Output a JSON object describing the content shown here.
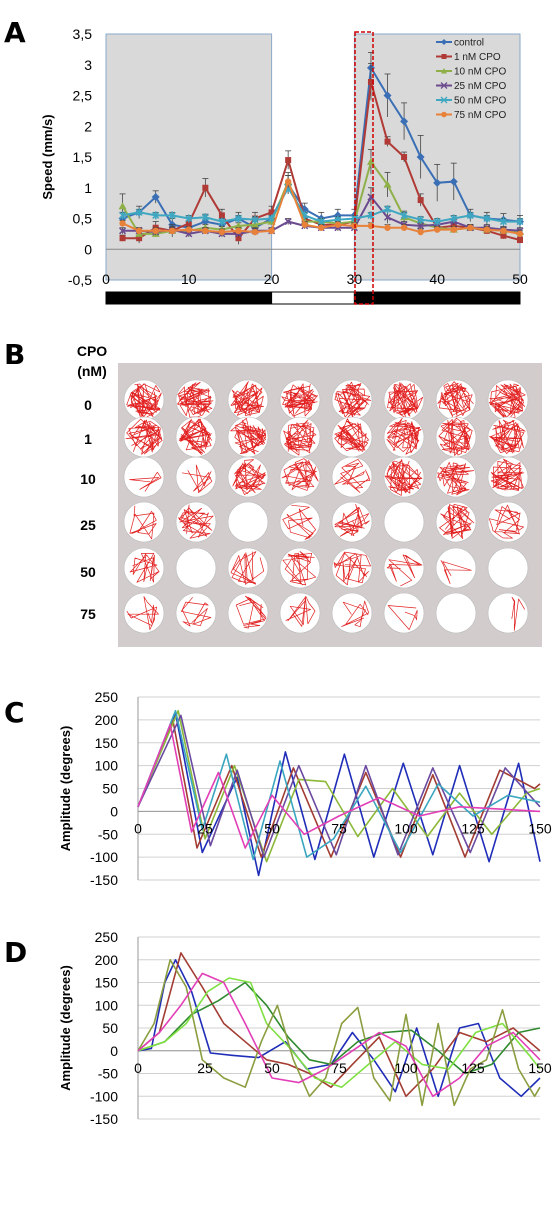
{
  "panels": {
    "a": {
      "letter": "A"
    },
    "b": {
      "letter": "B",
      "header_line1": "CPO",
      "header_line2": "(nM)",
      "rows": [
        "0",
        "1",
        "10",
        "25",
        "50",
        "75"
      ]
    },
    "c": {
      "letter": "C"
    },
    "d": {
      "letter": "D"
    }
  },
  "colors": {
    "shade": "#d9d9d9",
    "red_box": "#d00000",
    "plate_bg": "#d2cccc",
    "trace": "#e22020"
  },
  "chart_data": [
    {
      "id": "A",
      "type": "line",
      "ylabel": "Speed (mm/s)",
      "xlim": [
        0,
        50
      ],
      "ylim": [
        -0.5,
        3.5
      ],
      "xticks": [
        0,
        10,
        20,
        30,
        40,
        50
      ],
      "yticks": [
        "-0,5",
        "0",
        "0,5",
        "1",
        "1,5",
        "2",
        "2,5",
        "3",
        "3,5"
      ],
      "ytick_values": [
        -0.5,
        0,
        0.5,
        1,
        1.5,
        2,
        2.5,
        3,
        3.5
      ],
      "shaded_ranges": [
        [
          0,
          20
        ],
        [
          30,
          50
        ]
      ],
      "highlight_range": [
        30,
        32
      ],
      "light_bar": [
        [
          0,
          "dark"
        ],
        [
          20,
          "light"
        ],
        [
          30,
          "dark"
        ],
        [
          50,
          "end"
        ]
      ],
      "legend_position": "top-right",
      "x": [
        2,
        4,
        6,
        8,
        10,
        12,
        14,
        16,
        18,
        20,
        22,
        24,
        26,
        28,
        30,
        32,
        34,
        36,
        38,
        40,
        42,
        44,
        46,
        48,
        50
      ],
      "series": [
        {
          "name": "control",
          "color": "#3a6fb5",
          "marker": "diamond",
          "values": [
            0.5,
            0.6,
            0.85,
            0.4,
            0.35,
            0.45,
            0.4,
            0.5,
            0.35,
            0.5,
            1.05,
            0.65,
            0.5,
            0.55,
            0.55,
            2.95,
            2.5,
            2.08,
            1.5,
            1.08,
            1.1,
            0.55,
            0.5,
            0.48,
            0.45
          ],
          "errors": [
            0.1,
            0.1,
            0.1,
            0.1,
            0.1,
            0.1,
            0.1,
            0.1,
            0.1,
            0.1,
            0.15,
            0.1,
            0.1,
            0.1,
            0.1,
            0.25,
            0.35,
            0.3,
            0.35,
            0.3,
            0.3,
            0.1,
            0.1,
            0.1,
            0.1
          ]
        },
        {
          "name": "1 nM CPO",
          "color": "#b03a36",
          "marker": "square",
          "values": [
            0.18,
            0.18,
            0.35,
            0.3,
            0.42,
            1.0,
            0.55,
            0.18,
            0.5,
            0.6,
            1.45,
            0.5,
            0.4,
            0.4,
            0.45,
            2.72,
            1.75,
            1.5,
            0.8,
            0.35,
            0.38,
            0.35,
            0.3,
            0.22,
            0.15
          ],
          "errors": [
            0.05,
            0.08,
            0.1,
            0.1,
            0.1,
            0.15,
            0.1,
            0.1,
            0.1,
            0.1,
            0.15,
            0.1,
            0.1,
            0.1,
            0.1,
            0.3,
            0.08,
            0.08,
            0.1,
            0.05,
            0.05,
            0.05,
            0.05,
            0.05,
            0.05
          ]
        },
        {
          "name": "10 nM CPO",
          "color": "#8fb049",
          "marker": "triangle",
          "values": [
            0.7,
            0.25,
            0.25,
            0.3,
            0.3,
            0.35,
            0.32,
            0.38,
            0.4,
            0.45,
            1.1,
            0.45,
            0.45,
            0.42,
            0.45,
            1.42,
            1.05,
            0.52,
            0.42,
            0.35,
            0.32,
            0.35,
            0.32,
            0.3,
            0.28
          ],
          "errors": [
            0.2,
            0.05,
            0.05,
            0.05,
            0.05,
            0.05,
            0.05,
            0.05,
            0.05,
            0.05,
            0.15,
            0.05,
            0.05,
            0.05,
            0.05,
            0.2,
            0.2,
            0.1,
            0.05,
            0.05,
            0.05,
            0.05,
            0.05,
            0.05,
            0.05
          ]
        },
        {
          "name": "25 nM CPO",
          "color": "#6b4a8f",
          "marker": "x",
          "values": [
            0.3,
            0.3,
            0.28,
            0.32,
            0.25,
            0.3,
            0.25,
            0.25,
            0.3,
            0.3,
            0.45,
            0.38,
            0.35,
            0.35,
            0.35,
            0.85,
            0.52,
            0.4,
            0.38,
            0.4,
            0.45,
            0.35,
            0.35,
            0.32,
            0.3
          ],
          "errors": [
            0.05,
            0.05,
            0.05,
            0.05,
            0.05,
            0.05,
            0.05,
            0.05,
            0.05,
            0.05,
            0.05,
            0.05,
            0.05,
            0.05,
            0.05,
            0.15,
            0.1,
            0.05,
            0.05,
            0.05,
            0.05,
            0.05,
            0.05,
            0.05,
            0.05
          ]
        },
        {
          "name": "50 nM CPO",
          "color": "#3fa7c1",
          "marker": "asterisk",
          "values": [
            0.55,
            0.6,
            0.55,
            0.55,
            0.5,
            0.52,
            0.45,
            0.5,
            0.48,
            0.5,
            1.0,
            0.55,
            0.45,
            0.48,
            0.5,
            0.55,
            0.65,
            0.55,
            0.48,
            0.45,
            0.5,
            0.55,
            0.5,
            0.45,
            0.45
          ],
          "errors": [
            0.05,
            0.05,
            0.05,
            0.05,
            0.05,
            0.05,
            0.05,
            0.05,
            0.05,
            0.05,
            0.1,
            0.05,
            0.05,
            0.05,
            0.05,
            0.05,
            0.05,
            0.05,
            0.05,
            0.05,
            0.05,
            0.05,
            0.05,
            0.05,
            0.05
          ]
        },
        {
          "name": "75 nM CPO",
          "color": "#e8823a",
          "marker": "circle",
          "values": [
            0.42,
            0.3,
            0.3,
            0.3,
            0.32,
            0.3,
            0.28,
            0.3,
            0.28,
            0.3,
            1.1,
            0.4,
            0.35,
            0.4,
            0.38,
            0.38,
            0.35,
            0.35,
            0.28,
            0.32,
            0.32,
            0.35,
            0.32,
            0.3,
            0.25
          ],
          "errors": [
            0.05,
            0.05,
            0.05,
            0.05,
            0.05,
            0.05,
            0.05,
            0.05,
            0.05,
            0.05,
            0.1,
            0.05,
            0.05,
            0.05,
            0.05,
            0.05,
            0.05,
            0.05,
            0.05,
            0.05,
            0.05,
            0.05,
            0.05,
            0.05,
            0.05
          ]
        }
      ]
    },
    {
      "id": "C",
      "type": "line",
      "ylabel": "Amplitude (degrees)",
      "xlim": [
        0,
        150
      ],
      "ylim": [
        -150,
        250
      ],
      "xticks": [
        0,
        25,
        50,
        75,
        100,
        125,
        150
      ],
      "yticks": [
        -150,
        -100,
        -50,
        0,
        50,
        100,
        150,
        200,
        250
      ],
      "grid": true,
      "series": [
        {
          "color": "#1f2db8",
          "x": [
            0,
            14,
            24,
            37,
            45,
            55,
            66,
            77,
            88,
            99,
            110,
            120,
            131,
            142,
            150
          ],
          "values": [
            10,
            215,
            -90,
            75,
            -140,
            130,
            -105,
            125,
            -100,
            105,
            -95,
            100,
            -110,
            105,
            -110
          ]
        },
        {
          "color": "#a33d33",
          "x": [
            0,
            13,
            22,
            35,
            46,
            58,
            72,
            85,
            98,
            110,
            122,
            135,
            148,
            150
          ],
          "values": [
            10,
            200,
            -80,
            100,
            -100,
            95,
            -100,
            85,
            -100,
            80,
            -100,
            90,
            50,
            60
          ]
        },
        {
          "color": "#8cb83a",
          "x": [
            0,
            15,
            25,
            36,
            48,
            60,
            70,
            82,
            95,
            108,
            120,
            132,
            145,
            150
          ],
          "values": [
            10,
            220,
            -60,
            100,
            -110,
            70,
            65,
            -55,
            50,
            -55,
            40,
            -50,
            40,
            50
          ]
        },
        {
          "color": "#6a4aa0",
          "x": [
            0,
            16,
            27,
            37,
            47,
            60,
            74,
            85,
            97,
            110,
            124,
            137,
            150
          ],
          "values": [
            10,
            210,
            -75,
            90,
            -100,
            100,
            -95,
            100,
            -95,
            95,
            -90,
            95,
            10
          ]
        },
        {
          "color": "#3ba6c0",
          "x": [
            0,
            14,
            24,
            33,
            43,
            53,
            63,
            73,
            85,
            98,
            112,
            125,
            138,
            150
          ],
          "values": [
            10,
            220,
            -40,
            125,
            -105,
            110,
            -100,
            -60,
            55,
            -90,
            60,
            -10,
            35,
            20
          ]
        },
        {
          "color": "#e23fb7",
          "x": [
            0,
            12,
            20,
            30,
            40,
            50,
            62,
            75,
            90,
            105,
            120,
            135,
            150
          ],
          "values": [
            10,
            190,
            -45,
            85,
            -80,
            35,
            -50,
            -10,
            30,
            -10,
            10,
            5,
            0
          ]
        }
      ]
    },
    {
      "id": "D",
      "type": "line",
      "ylabel": "Amplitude (degrees)",
      "xlim": [
        0,
        150
      ],
      "ylim": [
        -150,
        250
      ],
      "xticks": [
        0,
        25,
        50,
        75,
        100,
        125,
        150
      ],
      "yticks": [
        -150,
        -100,
        -50,
        0,
        50,
        100,
        150,
        200,
        250
      ],
      "grid": true,
      "series": [
        {
          "color": "#1f2db8",
          "x": [
            0,
            5,
            10,
            14,
            20,
            27,
            35,
            45,
            55,
            63,
            72,
            80,
            88,
            96,
            104,
            112,
            120,
            127,
            135,
            143,
            150
          ],
          "values": [
            0,
            5,
            150,
            200,
            130,
            -5,
            -10,
            -15,
            20,
            -40,
            -30,
            40,
            -20,
            -90,
            50,
            -100,
            50,
            60,
            -60,
            -100,
            -60
          ]
        },
        {
          "color": "#a33d33",
          "x": [
            0,
            8,
            16,
            24,
            32,
            40,
            48,
            56,
            64,
            72,
            80,
            90,
            100,
            110,
            120,
            130,
            140,
            150
          ],
          "values": [
            0,
            40,
            215,
            140,
            60,
            20,
            -20,
            -30,
            -50,
            -80,
            -30,
            30,
            -100,
            -40,
            40,
            20,
            50,
            0
          ]
        },
        {
          "color": "#2f8a2f",
          "x": [
            0,
            10,
            20,
            30,
            40,
            48,
            56,
            64,
            72,
            82,
            92,
            102,
            112,
            122,
            132,
            142,
            150
          ],
          "values": [
            0,
            20,
            80,
            110,
            150,
            100,
            30,
            -20,
            -30,
            20,
            40,
            45,
            0,
            -50,
            -30,
            40,
            50
          ]
        },
        {
          "color": "#7fe042",
          "x": [
            0,
            10,
            18,
            26,
            34,
            42,
            48,
            56,
            66,
            76,
            86,
            96,
            106,
            116,
            126,
            136,
            146,
            150
          ],
          "values": [
            0,
            20,
            60,
            130,
            160,
            150,
            60,
            10,
            -60,
            -80,
            -30,
            20,
            -30,
            -40,
            40,
            60,
            -10,
            -40
          ]
        },
        {
          "color": "#8a9e40",
          "x": [
            0,
            6,
            12,
            18,
            24,
            32,
            40,
            46,
            52,
            58,
            64,
            70,
            76,
            82,
            88,
            94,
            100,
            106,
            112,
            118,
            124,
            130,
            136,
            142,
            148,
            150
          ],
          "values": [
            0,
            60,
            200,
            140,
            -20,
            -60,
            -80,
            20,
            100,
            -20,
            -100,
            -60,
            60,
            95,
            -60,
            -110,
            80,
            -120,
            60,
            -120,
            -40,
            -20,
            90,
            -40,
            -100,
            -80
          ]
        },
        {
          "color": "#e23fb7",
          "x": [
            0,
            8,
            16,
            24,
            32,
            40,
            50,
            60,
            70,
            80,
            90,
            100,
            110,
            120,
            130,
            140,
            150
          ],
          "values": [
            0,
            40,
            100,
            170,
            150,
            60,
            -60,
            -70,
            -40,
            0,
            40,
            10,
            -100,
            -60,
            10,
            40,
            -20
          ]
        }
      ]
    }
  ]
}
